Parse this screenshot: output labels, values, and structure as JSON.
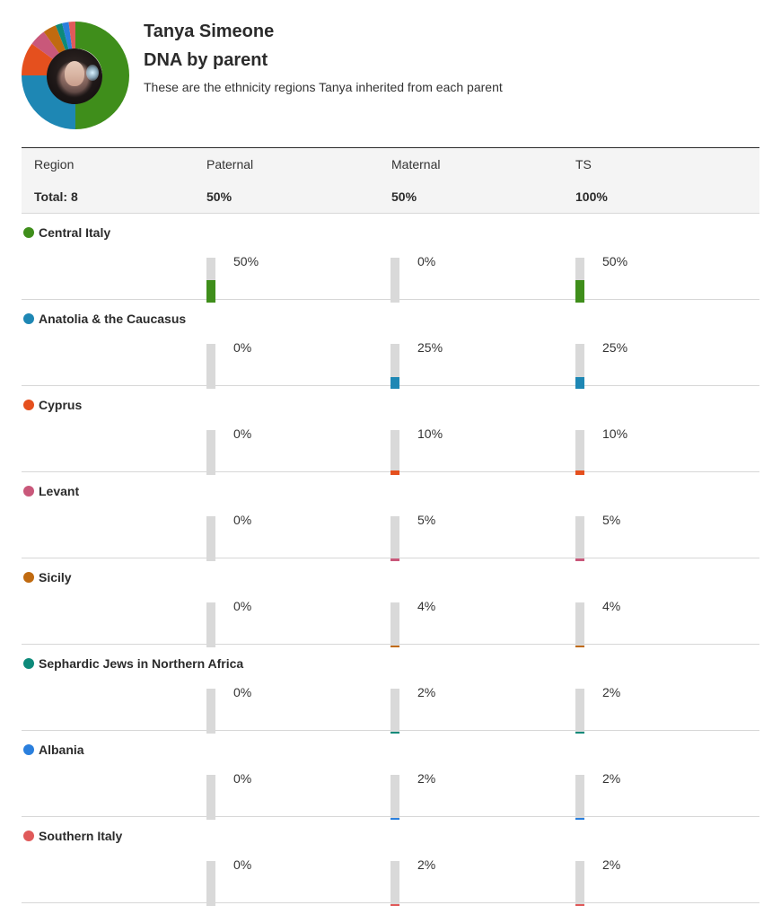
{
  "header": {
    "person_name": "Tanya Simeone",
    "title": "DNA by parent",
    "description": "These are the ethnicity regions Tanya inherited from each parent"
  },
  "table": {
    "columns": {
      "region": "Region",
      "paternal": "Paternal",
      "maternal": "Maternal",
      "ts": "TS"
    },
    "totals": {
      "region": "Total: 8",
      "paternal": "50%",
      "maternal": "50%",
      "ts": "100%"
    }
  },
  "regions": [
    {
      "name": "Central Italy",
      "color": "#3f8e1b",
      "paternal": "50%",
      "maternal": "0%",
      "ts": "50%",
      "paternal_value": 50,
      "maternal_value": 0,
      "ts_value": 50
    },
    {
      "name": "Anatolia & the Caucasus",
      "color": "#1e87b4",
      "paternal": "0%",
      "maternal": "25%",
      "ts": "25%",
      "paternal_value": 0,
      "maternal_value": 25,
      "ts_value": 25
    },
    {
      "name": "Cyprus",
      "color": "#e5501e",
      "paternal": "0%",
      "maternal": "10%",
      "ts": "10%",
      "paternal_value": 0,
      "maternal_value": 10,
      "ts_value": 10
    },
    {
      "name": "Levant",
      "color": "#c9587a",
      "paternal": "0%",
      "maternal": "5%",
      "ts": "5%",
      "paternal_value": 0,
      "maternal_value": 5,
      "ts_value": 5
    },
    {
      "name": "Sicily",
      "color": "#c06a10",
      "paternal": "0%",
      "maternal": "4%",
      "ts": "4%",
      "paternal_value": 0,
      "maternal_value": 4,
      "ts_value": 4
    },
    {
      "name": "Sephardic Jews in Northern Africa",
      "color": "#0d8a7a",
      "paternal": "0%",
      "maternal": "2%",
      "ts": "2%",
      "paternal_value": 0,
      "maternal_value": 2,
      "ts_value": 2
    },
    {
      "name": "Albania",
      "color": "#2a7fdd",
      "paternal": "0%",
      "maternal": "2%",
      "ts": "2%",
      "paternal_value": 0,
      "maternal_value": 2,
      "ts_value": 2
    },
    {
      "name": "Southern Italy",
      "color": "#e05a5a",
      "paternal": "0%",
      "maternal": "2%",
      "ts": "2%",
      "paternal_value": 0,
      "maternal_value": 2,
      "ts_value": 2
    }
  ]
}
